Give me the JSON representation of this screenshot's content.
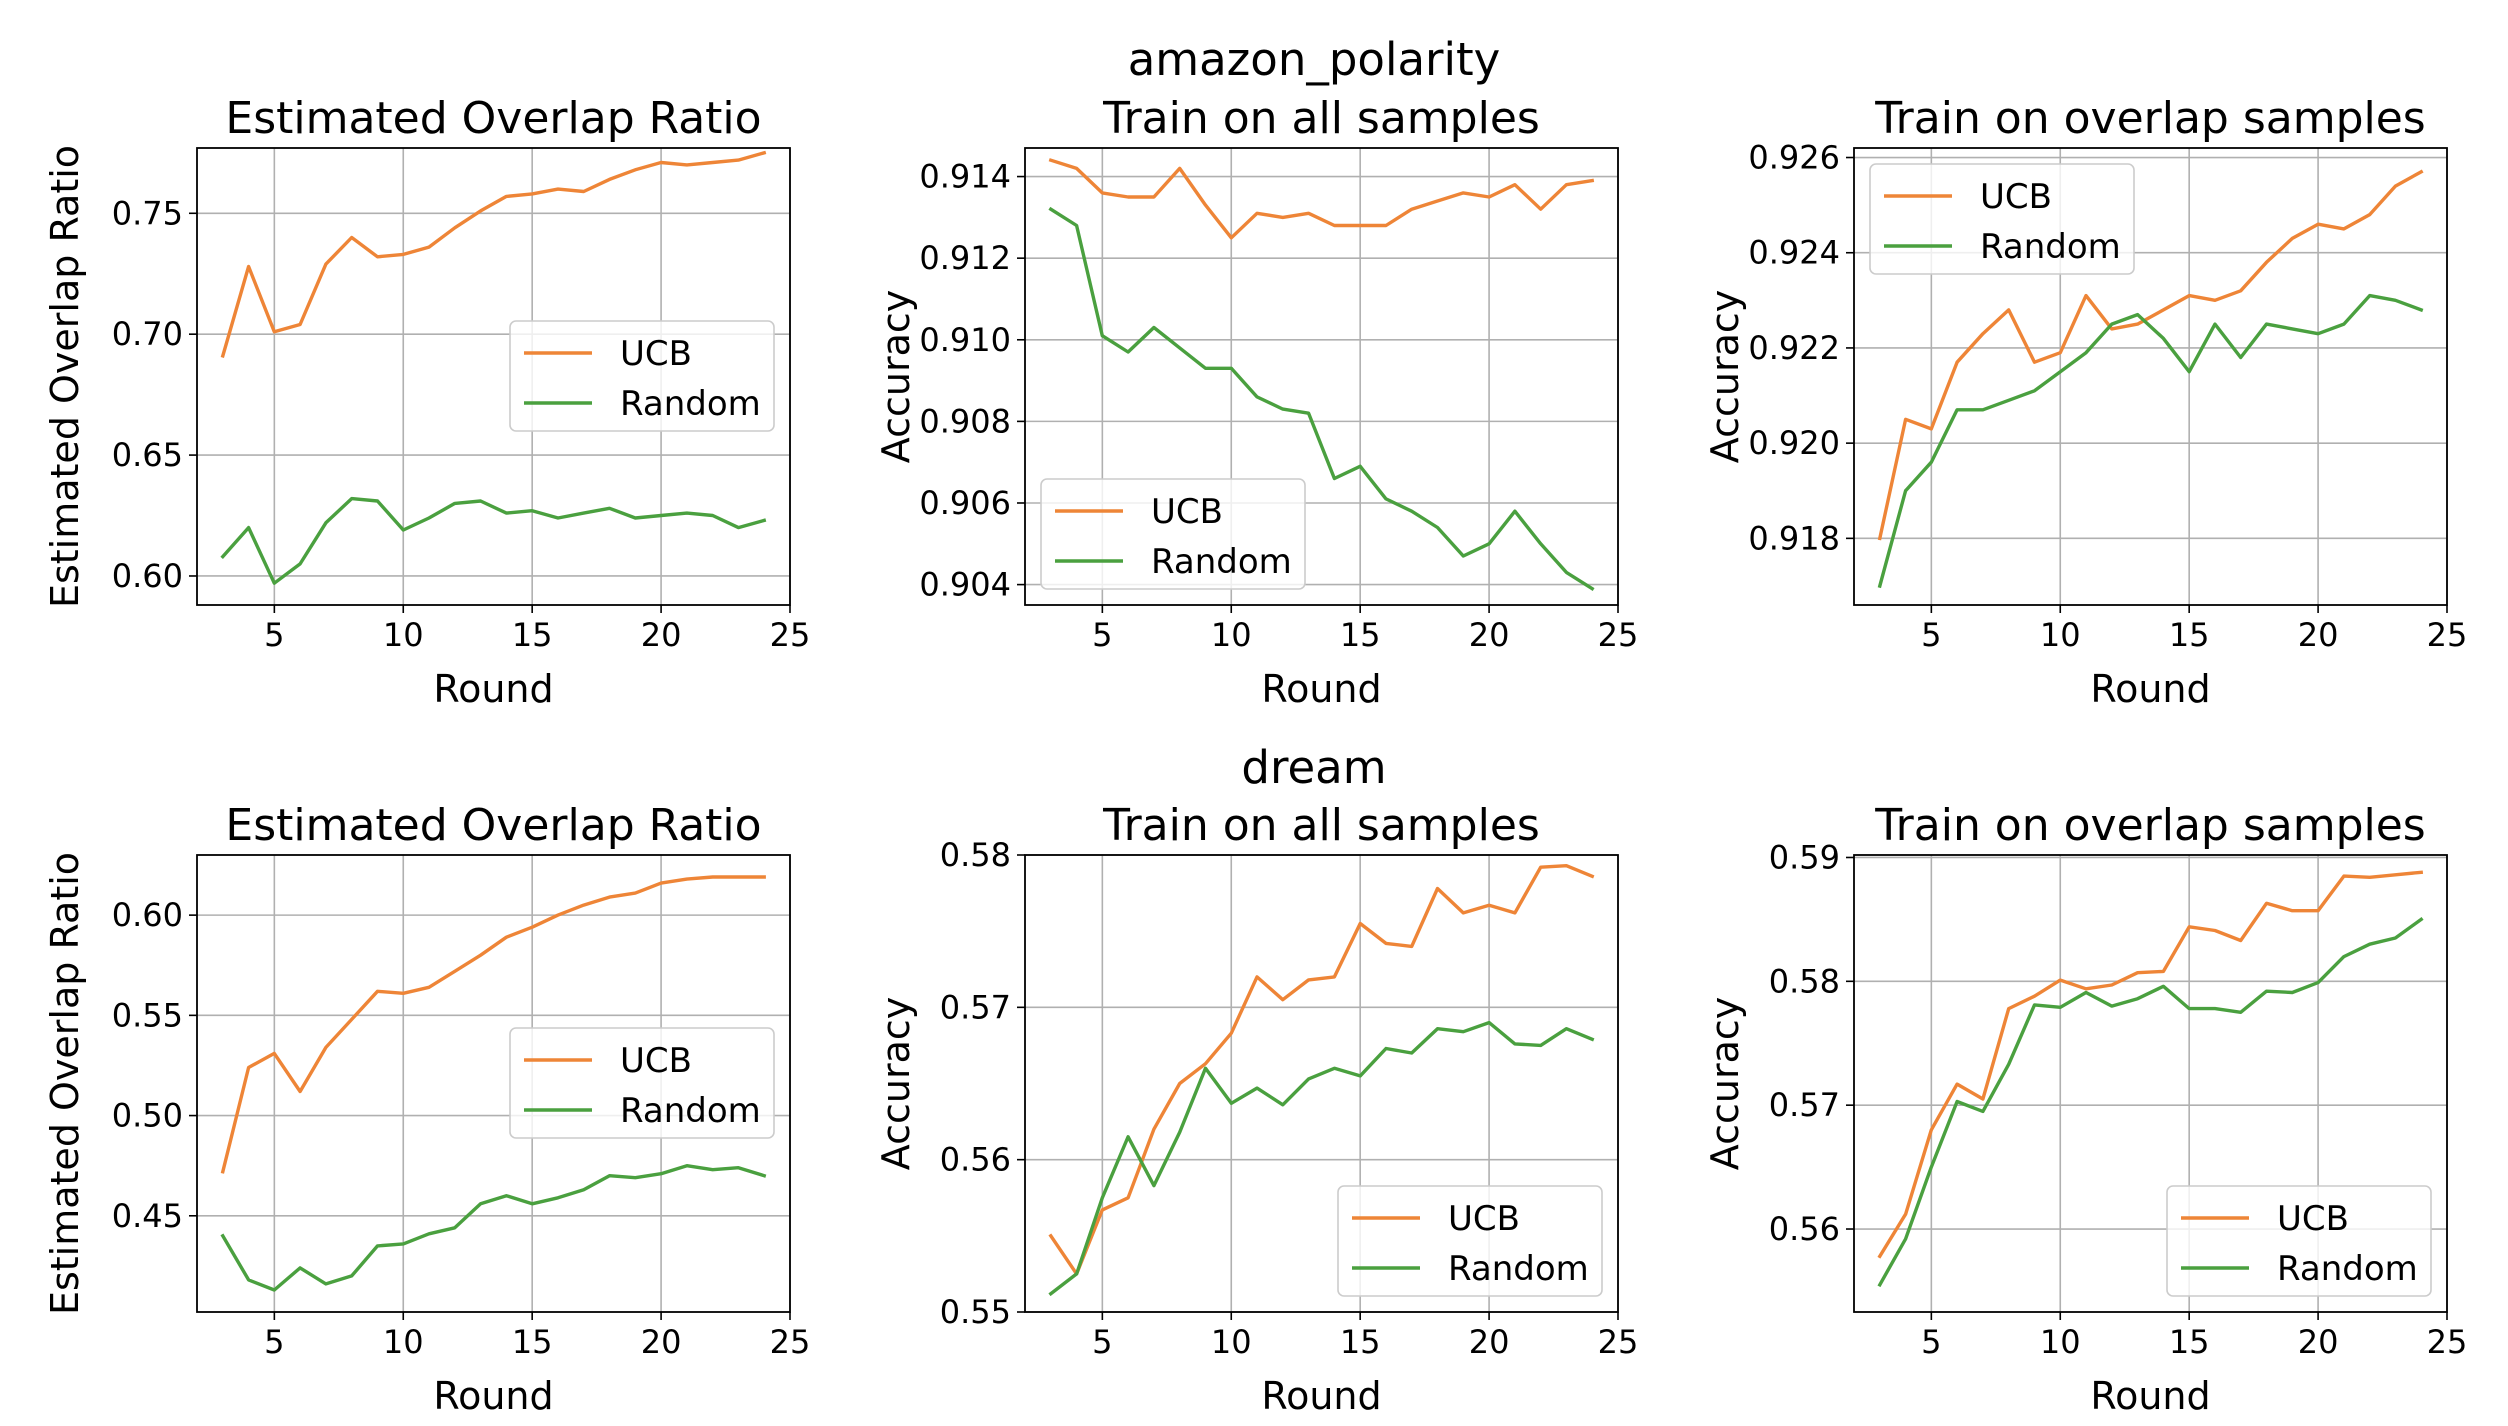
{
  "figure": {
    "row_titles": [
      "amazon_polarity",
      "dream"
    ]
  },
  "chart_data": [
    {
      "type": "line",
      "title": "Estimated Overlap Ratio",
      "xlabel": "Round",
      "ylabel": "Estimated Overlap Ratio",
      "xlim": [
        2.0,
        25.0
      ],
      "ylim": [
        0.588,
        0.777
      ],
      "xticks": [
        5,
        10,
        15,
        20,
        25
      ],
      "xtick_labels": [
        "5",
        "10",
        "15",
        "20",
        "25"
      ],
      "yticks": [
        0.6,
        0.65,
        0.7,
        0.75
      ],
      "ytick_labels": [
        "0.60",
        "0.65",
        "0.70",
        "0.75"
      ],
      "grid": true,
      "legend_position": "center-right",
      "colors": {
        "UCB": "#ee8537",
        "Random": "#4aa03f"
      },
      "x": [
        3,
        4,
        5,
        6,
        7,
        8,
        9,
        10,
        11,
        12,
        13,
        14,
        15,
        16,
        17,
        18,
        19,
        20,
        21,
        22,
        23,
        24
      ],
      "series": [
        {
          "name": "UCB",
          "values": [
            0.691,
            0.728,
            0.701,
            0.704,
            0.729,
            0.74,
            0.732,
            0.733,
            0.736,
            0.744,
            0.751,
            0.757,
            0.758,
            0.76,
            0.759,
            0.764,
            0.768,
            0.771,
            0.77,
            0.771,
            0.772,
            0.775
          ]
        },
        {
          "name": "Random",
          "values": [
            0.608,
            0.62,
            0.597,
            0.605,
            0.622,
            0.632,
            0.631,
            0.619,
            0.624,
            0.63,
            0.631,
            0.626,
            0.627,
            0.624,
            0.626,
            0.628,
            0.624,
            0.625,
            0.626,
            0.625,
            0.62,
            0.623
          ]
        }
      ]
    },
    {
      "type": "line",
      "title": "Train on all samples",
      "xlabel": "Round",
      "ylabel": "Accuracy",
      "xlim": [
        2.0,
        25.0
      ],
      "ylim": [
        0.9035,
        0.9147
      ],
      "xticks": [
        5,
        10,
        15,
        20,
        25
      ],
      "xtick_labels": [
        "5",
        "10",
        "15",
        "20",
        "25"
      ],
      "yticks": [
        0.904,
        0.906,
        0.908,
        0.91,
        0.912,
        0.914
      ],
      "ytick_labels": [
        "0.904",
        "0.906",
        "0.908",
        "0.910",
        "0.912",
        "0.914"
      ],
      "grid": true,
      "legend_position": "lower-left",
      "colors": {
        "UCB": "#ee8537",
        "Random": "#4aa03f"
      },
      "x": [
        3,
        4,
        5,
        6,
        7,
        8,
        9,
        10,
        11,
        12,
        13,
        14,
        15,
        16,
        17,
        18,
        19,
        20,
        21,
        22,
        23,
        24
      ],
      "series": [
        {
          "name": "UCB",
          "values": [
            0.9144,
            0.9142,
            0.9136,
            0.9135,
            0.9135,
            0.9142,
            0.9133,
            0.9125,
            0.9131,
            0.913,
            0.9131,
            0.9128,
            0.9128,
            0.9128,
            0.9132,
            0.9134,
            0.9136,
            0.9135,
            0.9138,
            0.9132,
            0.9138,
            0.9139
          ]
        },
        {
          "name": "Random",
          "values": [
            0.9132,
            0.9128,
            0.9101,
            0.9097,
            0.9103,
            0.9098,
            0.9093,
            0.9093,
            0.9086,
            0.9083,
            0.9082,
            0.9066,
            0.9069,
            0.9061,
            0.9058,
            0.9054,
            0.9047,
            0.905,
            0.9058,
            0.905,
            0.9043,
            0.9039
          ]
        }
      ]
    },
    {
      "type": "line",
      "title": "Train on overlap samples",
      "xlabel": "Round",
      "ylabel": "Accuracy",
      "xlim": [
        2.0,
        25.0
      ],
      "ylim": [
        0.9166,
        0.9262
      ],
      "xticks": [
        5,
        10,
        15,
        20,
        25
      ],
      "xtick_labels": [
        "5",
        "10",
        "15",
        "20",
        "25"
      ],
      "yticks": [
        0.918,
        0.92,
        0.922,
        0.924,
        0.926
      ],
      "ytick_labels": [
        "0.918",
        "0.920",
        "0.922",
        "0.924",
        "0.926"
      ],
      "grid": true,
      "legend_position": "upper-left",
      "colors": {
        "UCB": "#ee8537",
        "Random": "#4aa03f"
      },
      "x": [
        3,
        4,
        5,
        6,
        7,
        8,
        9,
        10,
        11,
        12,
        13,
        14,
        15,
        16,
        17,
        18,
        19,
        20,
        21,
        22,
        23,
        24
      ],
      "series": [
        {
          "name": "UCB",
          "values": [
            0.918,
            0.9205,
            0.9203,
            0.9217,
            0.9223,
            0.9228,
            0.9217,
            0.9219,
            0.9231,
            0.9224,
            0.9225,
            0.9228,
            0.9231,
            0.923,
            0.9232,
            0.9238,
            0.9243,
            0.9246,
            0.9245,
            0.9248,
            0.9254,
            0.9257
          ]
        },
        {
          "name": "Random",
          "values": [
            0.917,
            0.919,
            0.9196,
            0.9207,
            0.9207,
            0.9209,
            0.9211,
            0.9215,
            0.9219,
            0.9225,
            0.9227,
            0.9222,
            0.9215,
            0.9225,
            0.9218,
            0.9225,
            0.9224,
            0.9223,
            0.9225,
            0.9231,
            0.923,
            0.9228
          ]
        }
      ]
    },
    {
      "type": "line",
      "title": "Estimated Overlap Ratio",
      "xlabel": "Round",
      "ylabel": "Estimated Overlap Ratio",
      "xlim": [
        2.0,
        25.0
      ],
      "ylim": [
        0.402,
        0.63
      ],
      "xticks": [
        5,
        10,
        15,
        20,
        25
      ],
      "xtick_labels": [
        "5",
        "10",
        "15",
        "20",
        "25"
      ],
      "yticks": [
        0.45,
        0.5,
        0.55,
        0.6
      ],
      "ytick_labels": [
        "0.45",
        "0.50",
        "0.55",
        "0.60"
      ],
      "grid": true,
      "legend_position": "center-right",
      "colors": {
        "UCB": "#ee8537",
        "Random": "#4aa03f"
      },
      "x": [
        3,
        4,
        5,
        6,
        7,
        8,
        9,
        10,
        11,
        12,
        13,
        14,
        15,
        16,
        17,
        18,
        19,
        20,
        21,
        22,
        23,
        24
      ],
      "series": [
        {
          "name": "UCB",
          "values": [
            0.472,
            0.524,
            0.531,
            0.512,
            0.534,
            0.548,
            0.562,
            0.561,
            0.564,
            0.572,
            0.58,
            0.589,
            0.594,
            0.6,
            0.605,
            0.609,
            0.611,
            0.616,
            0.618,
            0.619,
            0.619,
            0.619
          ]
        },
        {
          "name": "Random",
          "values": [
            0.44,
            0.418,
            0.413,
            0.424,
            0.416,
            0.42,
            0.435,
            0.436,
            0.441,
            0.444,
            0.456,
            0.46,
            0.456,
            0.459,
            0.463,
            0.47,
            0.469,
            0.471,
            0.475,
            0.473,
            0.474,
            0.47
          ]
        }
      ]
    },
    {
      "type": "line",
      "title": "Train on all samples",
      "xlabel": "Round",
      "ylabel": "Accuracy",
      "xlim": [
        2.0,
        25.0
      ],
      "ylim": [
        0.55,
        0.58
      ],
      "xticks": [
        5,
        10,
        15,
        20,
        25
      ],
      "xtick_labels": [
        "5",
        "10",
        "15",
        "20",
        "25"
      ],
      "yticks": [
        0.55,
        0.56,
        0.57,
        0.58
      ],
      "ytick_labels": [
        "0.55",
        "0.56",
        "0.57",
        "0.58"
      ],
      "grid": true,
      "legend_position": "lower-right",
      "colors": {
        "UCB": "#ee8537",
        "Random": "#4aa03f"
      },
      "x": [
        3,
        4,
        5,
        6,
        7,
        8,
        9,
        10,
        11,
        12,
        13,
        14,
        15,
        16,
        17,
        18,
        19,
        20,
        21,
        22,
        23,
        24
      ],
      "series": [
        {
          "name": "UCB",
          "values": [
            0.555,
            0.5525,
            0.5567,
            0.5575,
            0.562,
            0.565,
            0.5663,
            0.5683,
            0.572,
            0.5705,
            0.5718,
            0.572,
            0.5755,
            0.5742,
            0.574,
            0.5778,
            0.5762,
            0.5767,
            0.5762,
            0.5792,
            0.5793,
            0.5786
          ]
        },
        {
          "name": "Random",
          "values": [
            0.5512,
            0.5525,
            0.5575,
            0.5615,
            0.5583,
            0.5618,
            0.566,
            0.5637,
            0.5647,
            0.5636,
            0.5653,
            0.566,
            0.5655,
            0.5673,
            0.567,
            0.5686,
            0.5684,
            0.569,
            0.5676,
            0.5675,
            0.5686,
            0.5679
          ]
        }
      ]
    },
    {
      "type": "line",
      "title": "Train on overlap samples",
      "xlabel": "Round",
      "ylabel": "Accuracy",
      "xlim": [
        2.0,
        25.0
      ],
      "ylim": [
        0.5533,
        0.5902
      ],
      "xticks": [
        5,
        10,
        15,
        20,
        25
      ],
      "xtick_labels": [
        "5",
        "10",
        "15",
        "20",
        "25"
      ],
      "yticks": [
        0.56,
        0.57,
        0.58,
        0.59
      ],
      "ytick_labels": [
        "0.56",
        "0.57",
        "0.58",
        "0.59"
      ],
      "grid": true,
      "legend_position": "lower-right",
      "colors": {
        "UCB": "#ee8537",
        "Random": "#4aa03f"
      },
      "x": [
        3,
        4,
        5,
        6,
        7,
        8,
        9,
        10,
        11,
        12,
        13,
        14,
        15,
        16,
        17,
        18,
        19,
        20,
        21,
        22,
        23,
        24
      ],
      "series": [
        {
          "name": "UCB",
          "values": [
            0.5578,
            0.5612,
            0.568,
            0.5717,
            0.5705,
            0.5778,
            0.5788,
            0.5801,
            0.5794,
            0.5797,
            0.5807,
            0.5808,
            0.5844,
            0.5841,
            0.5833,
            0.5863,
            0.5857,
            0.5857,
            0.5885,
            0.5884,
            0.5886,
            0.5888
          ]
        },
        {
          "name": "Random",
          "values": [
            0.5555,
            0.5592,
            0.565,
            0.5703,
            0.5695,
            0.5733,
            0.5781,
            0.5779,
            0.5791,
            0.578,
            0.5786,
            0.5796,
            0.5778,
            0.5778,
            0.5775,
            0.5792,
            0.5791,
            0.5799,
            0.582,
            0.583,
            0.5835,
            0.585
          ]
        }
      ]
    }
  ]
}
